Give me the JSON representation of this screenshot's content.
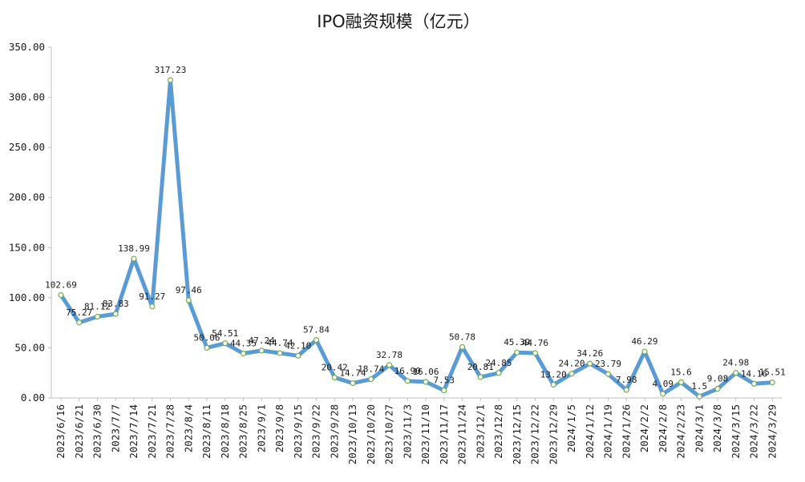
{
  "chart_data": {
    "type": "line",
    "title": "IPO融资规模（亿元）",
    "xlabel": "",
    "ylabel": "",
    "ylim": [
      0,
      350
    ],
    "yticks": [
      0,
      50,
      100,
      150,
      200,
      250,
      300,
      350
    ],
    "ytick_labels": [
      "0.00",
      "50.00",
      "100.00",
      "150.00",
      "200.00",
      "250.00",
      "300.00",
      "350.00"
    ],
    "grid": false,
    "series_color": "#5b9bd5",
    "marker_color": "#70ad47",
    "categories": [
      "2023/6/16",
      "2023/6/21",
      "2023/6/30",
      "2023/7/7",
      "2023/7/14",
      "2023/7/21",
      "2023/7/28",
      "2023/8/4",
      "2023/8/11",
      "2023/8/18",
      "2023/8/25",
      "2023/9/1",
      "2023/9/8",
      "2023/9/15",
      "2023/9/22",
      "2023/9/28",
      "2023/10/13",
      "2023/10/20",
      "2023/10/27",
      "2023/11/3",
      "2023/11/10",
      "2023/11/17",
      "2023/11/24",
      "2023/12/1",
      "2023/12/8",
      "2023/12/15",
      "2023/12/22",
      "2023/12/29",
      "2024/1/5",
      "2024/1/12",
      "2024/1/19",
      "2024/1/26",
      "2024/2/2",
      "2024/2/8",
      "2024/2/23",
      "2024/3/1",
      "2024/3/8",
      "2024/3/15",
      "2024/3/22",
      "2024/3/29"
    ],
    "series": [
      {
        "name": "IPO融资规模",
        "values": [
          102.69,
          75.27,
          81.12,
          83.83,
          138.99,
          91.27,
          317.23,
          97.46,
          50.06,
          54.51,
          44.35,
          47.24,
          44.74,
          42.1,
          57.84,
          20.42,
          14.74,
          18.74,
          32.78,
          16.9,
          16.06,
          7.53,
          50.78,
          20.81,
          24.85,
          45.39,
          44.76,
          13.2,
          24.2,
          34.26,
          23.79,
          7.98,
          46.29,
          4.09,
          15.6,
          1.5,
          9.08,
          24.98,
          14.16,
          15.51
        ],
        "labels": [
          "102.69",
          "75.27",
          "81.12",
          "83.83",
          "138.99",
          "91.27",
          "317.23",
          "97.46",
          "50.06",
          "54.51",
          "44.35",
          "47.24",
          "44.74",
          "42.10",
          "57.84",
          "20.42",
          "14.74",
          "18.74",
          "32.78",
          "16.90",
          "16.06",
          "7.53",
          "50.78",
          "20.81",
          "24.85",
          "45.39",
          "44.76",
          "13.20",
          "24.20",
          "34.26",
          "23.79",
          "7.98",
          "46.29",
          "4.09",
          "15.6",
          "1.5",
          "9.08",
          "24.98",
          "14.16",
          "15.51"
        ]
      }
    ]
  }
}
